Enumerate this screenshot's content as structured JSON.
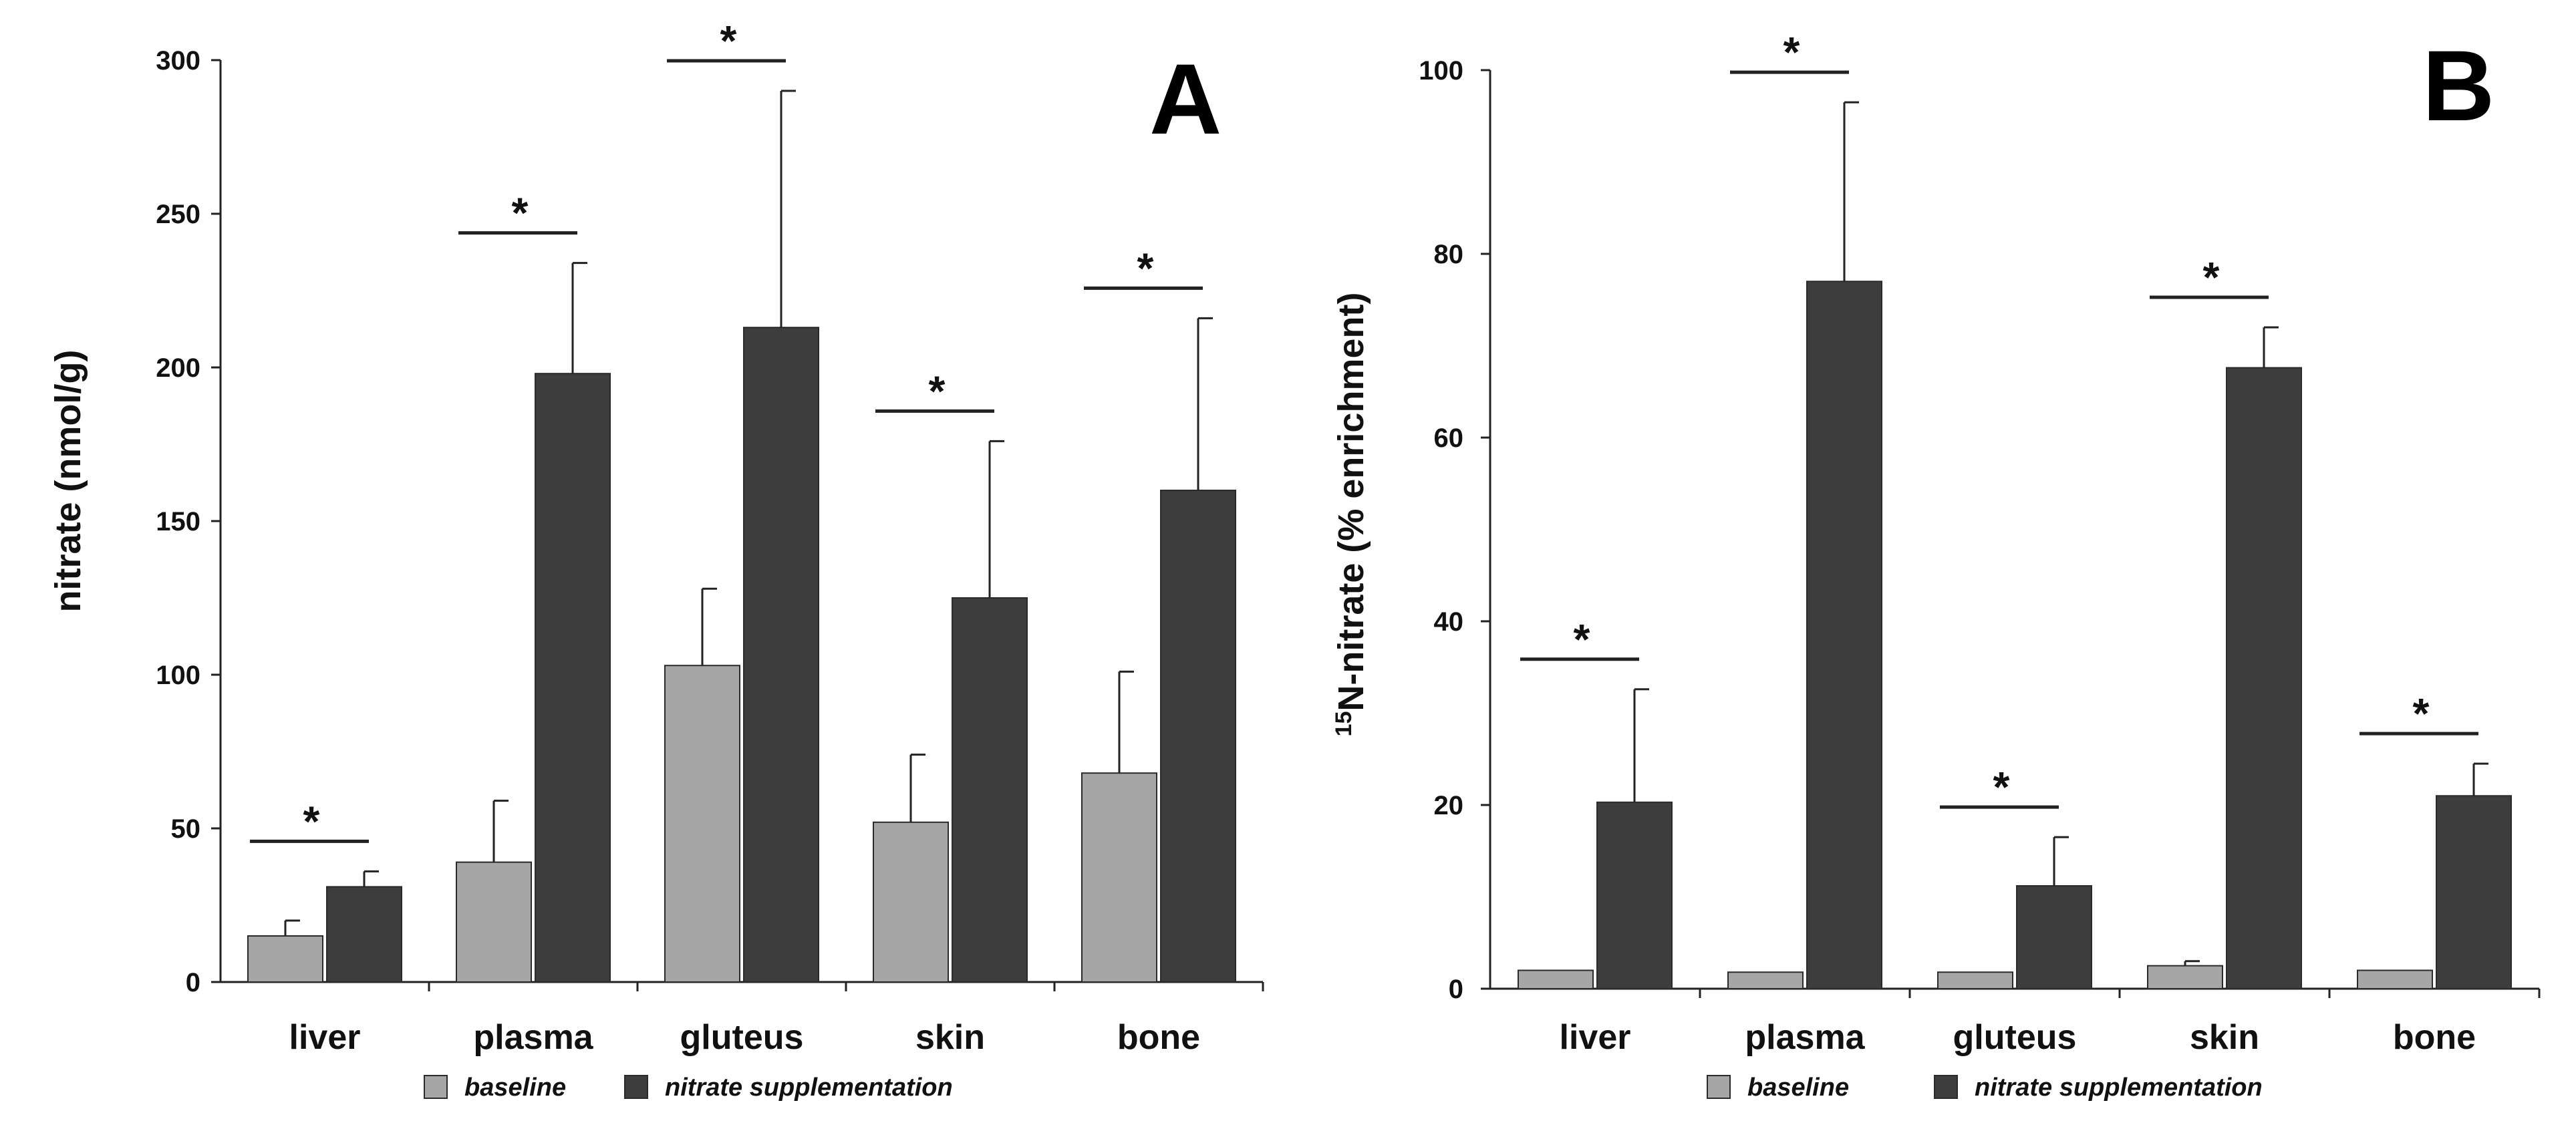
{
  "colors": {
    "baseline": "#a6a6a6",
    "supplement": "#3d3d3d",
    "axis": "#222222",
    "edge": "#2a2a2a"
  },
  "chart_data": [
    {
      "panel": "A",
      "type": "bar",
      "ylabel": "nitrate (nmol/g)",
      "ylim": [
        0,
        300
      ],
      "yticks": [
        0,
        50,
        100,
        150,
        200,
        250,
        300
      ],
      "categories": [
        "liver",
        "plasma",
        "gluteus",
        "skin",
        "bone"
      ],
      "series": [
        {
          "name": "baseline",
          "values": [
            15,
            39,
            103,
            52,
            68
          ],
          "errors": [
            5,
            20,
            25,
            22,
            33
          ]
        },
        {
          "name": "nitrate supplementation",
          "values": [
            31,
            198,
            213,
            125,
            160
          ],
          "errors": [
            5,
            36,
            77,
            51,
            56
          ]
        }
      ],
      "significance": [
        "*",
        "*",
        "*",
        "*",
        "*"
      ],
      "legend": [
        "baseline",
        "nitrate supplementation"
      ]
    },
    {
      "panel": "B",
      "type": "bar",
      "ylabel_super": "15",
      "ylabel": "N-nitrate (% enrichment)",
      "ylim": [
        0,
        100
      ],
      "yticks": [
        0,
        20,
        40,
        60,
        80,
        100
      ],
      "categories": [
        "liver",
        "plasma",
        "gluteus",
        "skin",
        "bone"
      ],
      "series": [
        {
          "name": "baseline",
          "values": [
            2,
            1.8,
            1.8,
            2.5,
            2
          ],
          "errors": [
            0,
            0,
            0,
            0.5,
            0
          ]
        },
        {
          "name": "nitrate supplementation",
          "values": [
            20.3,
            77,
            11.2,
            67.6,
            21
          ],
          "errors": [
            12.3,
            19.5,
            5.3,
            4.4,
            3.5
          ]
        }
      ],
      "significance": [
        "*",
        "*",
        "*",
        "*",
        "*"
      ],
      "legend": [
        "baseline",
        "nitrate supplementation"
      ]
    }
  ]
}
